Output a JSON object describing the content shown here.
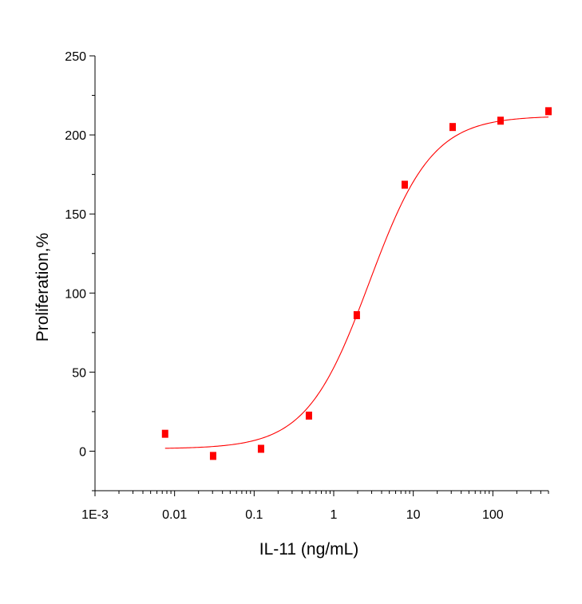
{
  "chart_data": {
    "type": "scatter",
    "xlabel": "IL-11 (ng/mL)",
    "ylabel": "Proliferation,%",
    "x_scale": "log",
    "xlim": [
      0.001,
      500
    ],
    "ylim": [
      -25,
      250
    ],
    "x_ticks": [
      {
        "value": 0.001,
        "label": "1E-3"
      },
      {
        "value": 0.01,
        "label": "0.01"
      },
      {
        "value": 0.1,
        "label": "0.1"
      },
      {
        "value": 1,
        "label": "1"
      },
      {
        "value": 10,
        "label": "10"
      },
      {
        "value": 100,
        "label": "100"
      }
    ],
    "y_ticks": [
      0,
      50,
      100,
      150,
      200,
      250
    ],
    "grid": false,
    "color": "#ff0000",
    "series": [
      {
        "x": [
          0.0076,
          0.0305,
          0.122,
          0.488,
          1.95,
          7.81,
          31.25,
          125,
          500
        ],
        "y": [
          11,
          -3,
          1.5,
          22.5,
          86,
          168.5,
          205,
          209,
          215
        ]
      }
    ],
    "fit": {
      "type": "4PL",
      "bottom": 1.5,
      "top": 212,
      "ec50": 2.8,
      "hill": 1.1,
      "x_range": [
        0.0076,
        500
      ]
    }
  }
}
